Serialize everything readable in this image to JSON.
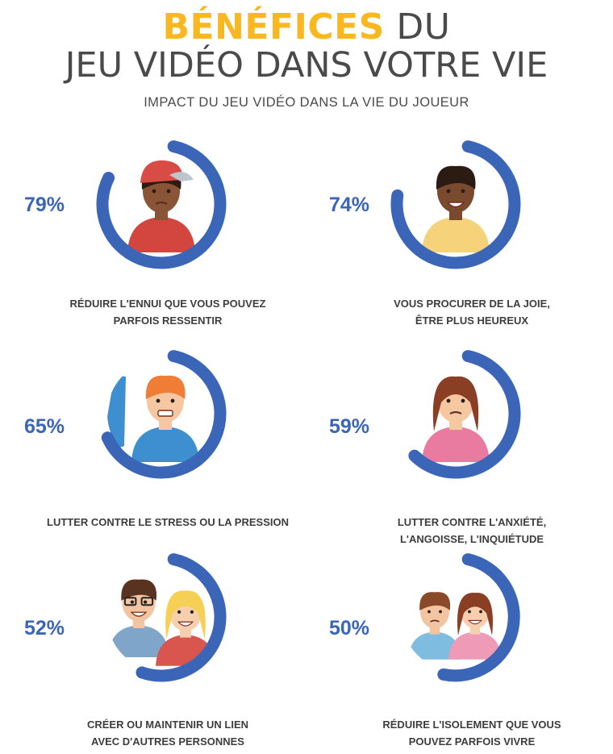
{
  "header": {
    "title_accent": "BÉNÉFICES",
    "title_rest": " DU",
    "title_line2": "JEU VIDÉO DANS VOTRE VIE",
    "subtitle": "IMPACT DU JEU VIDÉO DANS LA VIE DU JOUEUR"
  },
  "colors": {
    "accent": "#f9b820",
    "ring": "#3b66b7",
    "text": "#4a4a4a"
  },
  "chart_data": {
    "type": "radial-progress",
    "title": "BÉNÉFICES DU JEU VIDÉO DANS VOTRE VIE",
    "subtitle": "IMPACT DU JEU VIDÉO DANS LA VIE DU JOUEUR",
    "unit": "%",
    "items": [
      {
        "value": 79,
        "label_display": "79%",
        "caption": [
          "RÉDUIRE L'ENNUI QUE VOUS POUVEZ",
          "PARFOIS RESSENTIR"
        ],
        "icon": "boy-thinking-cap"
      },
      {
        "value": 74,
        "label_display": "74%",
        "caption": [
          "VOUS PROCURER DE LA JOIE,",
          "ÊTRE PLUS HEUREUX"
        ],
        "icon": "smiling-man"
      },
      {
        "value": 65,
        "label_display": "65%",
        "caption": [
          "LUTTER CONTRE LE STRESS OU LA PRESSION"
        ],
        "icon": "stressed-man"
      },
      {
        "value": 59,
        "label_display": "59%",
        "caption": [
          "LUTTER CONTRE L'ANXIÉTÉ,",
          "L'ANGOISSE, L'INQUIÉTUDE"
        ],
        "icon": "worried-woman"
      },
      {
        "value": 52,
        "label_display": "52%",
        "caption": [
          "CRÉER OU MAINTENIR UN LIEN",
          "AVEC D'AUTRES PERSONNES"
        ],
        "icon": "couple-friends"
      },
      {
        "value": 50,
        "label_display": "50%",
        "caption": [
          "RÉDUIRE L'ISOLEMENT QUE VOUS",
          "POUVEZ PARFOIS VIVRE"
        ],
        "icon": "two-children"
      }
    ]
  }
}
